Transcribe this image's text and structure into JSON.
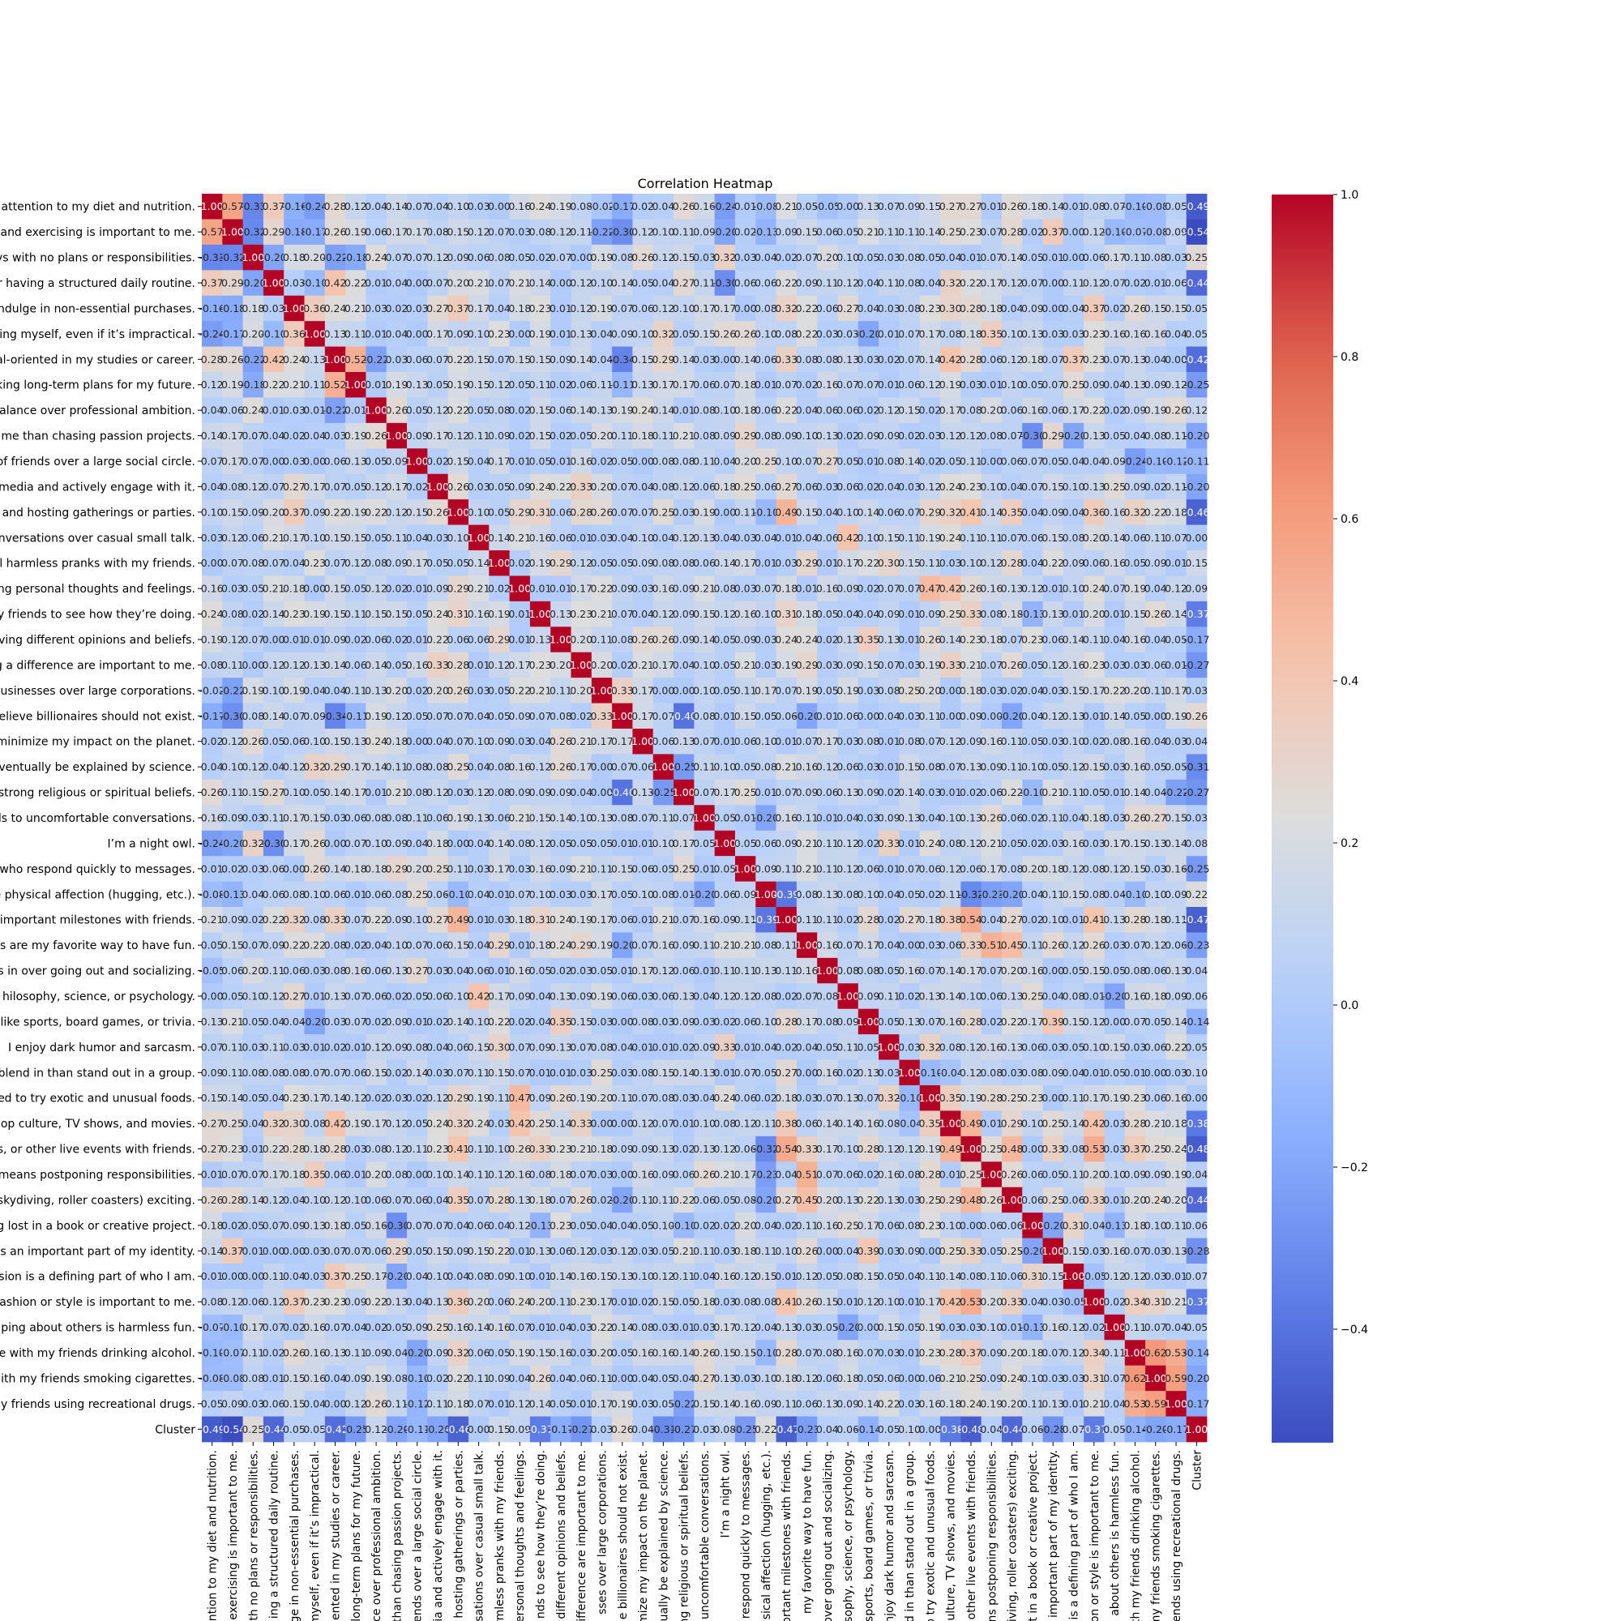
{
  "chart_data": {
    "type": "heatmap",
    "title": "Correlation Heatmap",
    "labels": [
      "attention to my diet and nutrition.",
      "and exercising is important to me.",
      "ys with no plans or responsibilities.",
      "r having a structured daily routine.",
      "ndulge in non-essential purchases.",
      "ing myself, even if it’s impractical.",
      "al-oriented in my studies or career.",
      "king long-term plans for my future.",
      "alance over professional ambition.",
      "me than chasing passion projects.",
      "of friends over a large social circle.",
      "media and actively engage with it.",
      "and hosting gatherings or parties.",
      "nversations over casual small talk.",
      "l harmless pranks with my friends.",
      "ng personal thoughts and feelings.",
      "y friends to see how they’re doing.",
      "ving different opinions and beliefs.",
      "g a difference are important to me.",
      "businesses over large corporations.",
      "elieve billionaires should not exist.",
      "minimize my impact on the planet.",
      "ventually be explained by science.",
      "strong religious or spiritual beliefs.",
      "ds to uncomfortable conversations.",
      "I’m a night owl.",
      "who respond quickly to messages.",
      "e physical affection (hugging, etc.).",
      "important milestones with friends.",
      "s are my favorite way to have fun.",
      "s in over going out and socializing.",
      "hilosophy, science, or psychology.",
      "like sports, board games, or trivia.",
      "I enjoy dark humor and sarcasm.",
      "blend in than stand out in a group.",
      "ed to try exotic and unusual foods.",
      "op culture, TV shows, and movies.",
      "s, or other live events with friends.",
      "means postponing responsibilities.",
      "skydiving, roller coasters) exciting.",
      "g lost in a book or creative project.",
      "s an important part of my identity.",
      "sion is a defining part of who I am.",
      "ashion or style is important to me.",
      "iping about others is harmless fun.",
      "e with my friends drinking alcohol.",
      "ith my friends smoking cigarettes.",
      "y friends using recreational drugs.",
      "Cluster"
    ],
    "xlabels": [
      "ntion to my diet and nutrition.",
      "exercising is important to me.",
      "th no plans or responsibilities.",
      "ing a structured daily routine.",
      "ge in non-essential purchases.",
      "ge myself, even if it’s impractical.",
      "ented in my studies or career.",
      "long-term plans for my future.",
      "ce over professional ambition.",
      "than chasing passion projects.",
      "ends over a large social circle.",
      "ia and actively engage with it.",
      "hosting gatherings or parties.",
      "sations over casual small talk.",
      "rmless pranks with my friends.",
      "ersonal thoughts and feelings.",
      "nds to see how they’re doing.",
      "different opinions and beliefs.",
      "difference are important to me.",
      "sses over large corporations.",
      "e billionaires should not exist.",
      "mize my impact on the planet.",
      "ually be explained by science.",
      "ng religious or spiritual beliefs.",
      "uncomfortable conversations.",
      "I’m a night owl.",
      "respond quickly to messages.",
      "sical affection (hugging, etc.).",
      "ortant milestones with friends.",
      "my favorite way to have fun.",
      "over going out and socializing.",
      "sophy, science, or psychology.",
      "sports, board games, or trivia.",
      "njoy dark humor and sarcasm.",
      "d in than stand out in a group.",
      "o try exotic and unusual foods.",
      "culture, TV shows, and movies.",
      "other live events with friends.",
      "ns postponing responsibilities.",
      "iving, roller coasters) exciting.",
      "t in a book or creative project.",
      "important part of my identity.",
      "is a defining part of who I am.",
      "on or style is important to me.",
      "about others is harmless fun.",
      "th my friends drinking alcohol.",
      "my friends smoking cigarettes.",
      "ends using recreational drugs.",
      "Cluster"
    ],
    "rows": [
      "1.00 0.57 -0.33 0.37 -0.16 -0.24 0.28 0.12 0.04 0.14 0.07 0.04 0.10 0.03 0.00 0.16 0.24 0.19 0.08 -0.02 -0.17 0.02 0.04 0.26 0.16 -0.24 0.01 -0.08 0.21 0.05 -0.05 -0.00 0.13 0.07 0.09 0.15 0.27 0.27 0.01 0.26 0.18 0.14 0.01 0.08 0.07 -0.10 -0.08 0.05 -0.49",
      "0.57 1.00 -0.32 0.29 -0.18 -0.17 0.26 0.19 0.06 0.17 0.17 0.08 0.15 0.12 0.07 0.03 0.08 0.12 0.11 -0.22 -0.30 0.12 0.10 0.11 0.09 -0.20 0.02 -0.13 0.09 0.15 0.06 0.05 0.21 0.11 0.11 0.14 0.25 0.23 0.07 0.28 0.02 0.37 0.00 0.12 -0.10 -0.07 -0.08 0.09 -0.54",
      "-0.33 -0.32 1.00 -0.20 0.18 0.20 -0.22 -0.18 0.24 0.07 0.07 0.12 0.09 0.06 0.08 0.05 0.02 0.07 0.00 0.19 0.08 0.26 0.12 0.15 0.03 0.32 0.03 0.04 0.02 0.07 0.20 0.10 0.05 0.03 0.08 0.05 0.04 0.01 0.07 0.14 0.05 0.01 0.00 0.06 0.17 0.11 0.08 0.03 0.25",
      "0.37 0.29 -0.20 1.00 0.03 -0.10 0.42 0.22 0.01 0.04 0.00 0.07 0.20 0.21 0.07 0.21 0.14 0.00 0.12 0.10 0.14 0.05 0.04 0.27 0.11 -0.30 0.06 0.06 0.22 0.09 0.11 0.12 0.04 0.11 0.08 0.04 0.32 0.22 0.17 0.12 0.07 0.00 0.11 0.12 0.07 0.02 0.01 0.06 -0.44",
      "-0.16 -0.18 0.18 0.03 1.00 0.36 0.24 0.21 0.03 0.02 0.03 0.27 0.37 0.17 0.04 0.18 0.23 0.01 0.12 0.19 0.07 0.06 0.12 0.10 0.17 0.17 0.00 0.08 0.32 0.22 0.06 0.27 0.04 0.03 0.08 0.23 0.30 0.28 0.18 0.04 0.09 0.00 0.04 0.37 0.02 0.26 0.15 0.15 0.05",
      "-0.24 -0.17 0.20 -0.10 0.36 1.00 0.13 0.11 0.01 0.04 0.00 0.17 0.09 0.10 0.23 0.00 0.19 0.01 0.13 0.04 0.09 0.10 0.32 0.05 0.15 0.26 0.26 0.10 0.08 0.22 0.03 0.03 -0.20 0.01 0.07 0.17 0.08 0.18 0.35 0.10 0.13 0.03 0.03 0.23 0.16 0.16 0.16 0.04 0.05",
      "0.28 0.26 -0.22 0.42 0.24 0.13 1.00 0.52 -0.22 0.03 0.06 0.07 0.22 0.15 0.07 0.15 0.15 0.09 0.14 0.04 -0.34 0.15 0.29 0.14 0.03 0.00 0.14 0.06 0.33 0.08 0.08 0.13 0.03 0.02 0.07 0.14 0.42 0.28 0.06 0.12 0.18 0.07 0.37 0.23 0.07 0.13 0.04 0.00 -0.42",
      "0.12 0.19 -0.18 0.22 0.21 0.11 0.52 1.00 0.01 0.19 0.13 0.05 0.19 0.15 0.12 0.05 0.11 0.02 0.06 0.11 -0.11 0.13 0.17 0.17 0.06 0.07 0.18 0.01 0.07 0.02 0.16 0.07 0.07 0.01 0.06 0.12 0.19 0.03 0.01 0.10 0.05 0.07 0.25 0.09 0.04 0.13 0.09 0.12 -0.25",
      "0.04 0.06 0.24 0.01 0.03 0.01 -0.22 0.01 1.00 0.26 0.05 0.12 0.22 0.05 0.08 0.02 0.15 0.06 0.14 0.13 0.19 0.24 0.14 0.01 0.08 0.10 0.18 0.06 0.22 0.04 0.06 0.06 0.02 0.12 0.15 0.02 0.17 0.08 0.20 0.06 0.16 0.06 0.17 0.22 0.02 0.09 0.19 0.26 0.12",
      "0.14 0.17 0.07 0.04 0.02 0.04 0.03 0.19 0.26 1.00 0.09 0.17 0.12 0.11 0.09 0.02 0.15 0.02 0.05 0.20 0.11 0.18 0.11 0.21 0.08 0.09 0.29 0.08 0.09 0.10 0.13 0.02 0.09 0.09 0.02 0.03 0.12 0.12 0.08 0.07 -0.30 0.29 -0.20 0.13 0.05 0.04 0.08 0.11 -0.20",
      "0.07 0.17 0.07 0.00 0.03 0.00 0.06 0.13 0.05 0.09 1.00 0.02 0.15 0.04 0.17 0.01 0.05 0.01 0.16 0.02 0.05 0.00 0.08 0.08 0.11 0.04 0.20 0.25 0.10 0.07 0.27 0.05 0.01 0.08 0.14 0.02 0.05 0.11 0.00 0.06 0.07 0.05 0.04 0.04 0.09 -0.24 -0.10 -0.12 -0.11",
      "0.04 0.08 0.12 0.07 0.27 0.17 0.07 0.05 0.12 0.17 0.02 1.00 0.26 0.03 0.05 0.09 0.24 0.22 0.33 0.20 0.07 0.04 0.08 0.12 0.06 0.18 0.25 0.06 0.27 0.06 0.03 0.06 0.02 0.04 0.03 0.12 0.24 0.23 0.10 0.04 0.07 0.15 0.10 0.13 0.25 0.09 0.02 0.11 -0.20",
      "0.10 0.15 0.09 0.20 0.37 0.09 0.22 0.19 0.22 0.12 0.15 0.26 1.00 0.10 0.05 0.29 0.31 0.06 0.28 0.26 0.07 0.07 0.25 0.03 0.19 0.00 0.11 -0.10 0.49 0.15 0.04 0.10 0.14 0.06 0.07 0.29 0.32 0.41 0.14 0.35 0.04 0.09 0.04 0.36 0.16 0.32 0.22 0.18 -0.46",
      "0.03 0.12 0.06 0.21 0.17 0.10 0.15 0.15 0.05 0.11 0.04 0.03 0.10 1.00 0.14 0.21 0.16 0.06 0.01 0.03 0.04 0.10 0.04 0.12 0.13 0.04 0.03 0.04 0.01 0.04 0.06 0.42 0.10 0.15 0.11 0.19 0.24 0.11 0.11 0.07 0.06 0.15 0.08 0.20 0.14 0.06 0.11 0.07 0.00",
      "0.00 0.07 0.08 0.07 0.04 0.23 0.07 0.12 0.08 0.09 0.17 0.05 0.05 0.14 1.00 0.02 0.19 0.29 0.12 0.05 0.05 0.09 0.08 0.08 0.06 0.14 0.17 0.01 0.03 0.29 0.01 0.17 0.22 0.30 0.15 0.11 0.03 0.10 0.12 0.28 0.04 0.22 0.09 0.06 0.16 0.05 0.09 0.01 0.15",
      "0.16 0.03 0.05 0.21 0.18 0.00 0.15 0.05 0.12 0.02 0.01 0.09 0.29 0.21 0.02 1.00 0.01 0.01 0.17 0.22 0.09 0.03 0.16 0.09 0.21 0.08 0.03 0.07 0.18 0.01 0.16 0.09 0.02 0.07 0.07 0.47 0.42 0.26 0.16 0.13 0.12 0.01 0.10 0.24 0.07 0.19 0.04 0.12 0.09",
      "0.24 0.08 0.02 0.14 0.23 0.19 0.15 0.11 0.15 0.15 0.05 0.24 0.31 0.16 0.19 0.01 1.00 0.13 0.23 0.21 0.07 0.04 0.12 0.09 0.15 0.12 0.16 0.10 0.31 0.18 0.05 0.04 0.04 0.09 0.01 0.09 0.25 0.33 0.08 0.18 -0.13 0.13 0.01 0.20 0.01 0.15 0.26 0.14 -0.37",
      "0.19 0.12 0.07 0.00 0.01 0.01 0.09 0.02 0.06 0.02 0.01 0.22 0.06 0.06 0.29 0.01 0.13 1.00 0.20 0.11 0.08 0.26 0.26 0.09 0.14 0.05 0.09 0.03 0.24 0.24 0.02 0.13 0.35 0.13 0.01 0.26 0.14 0.23 0.18 0.07 0.23 0.06 0.14 0.11 0.04 0.16 0.04 0.05 -0.17",
      "0.08 0.11 0.00 0.12 0.12 0.13 0.14 0.06 0.14 0.05 0.16 0.33 0.28 0.01 0.12 0.17 0.23 0.20 1.00 0.20 0.02 0.21 0.17 0.04 0.10 0.05 0.21 0.03 0.19 0.29 0.03 0.09 0.15 0.07 0.03 0.19 0.33 0.21 0.07 0.26 0.05 0.12 0.16 0.23 0.03 0.03 0.06 0.01 -0.27",
      "-0.02 -0.22 0.19 0.10 0.19 0.04 0.04 0.11 0.13 0.20 0.02 0.20 0.26 0.03 0.05 0.22 0.21 0.11 0.20 1.00 0.33 0.17 0.00 0.00 0.10 0.05 0.11 0.17 0.07 0.19 0.05 0.19 0.03 0.08 0.25 0.20 0.00 0.18 0.03 0.02 0.04 0.03 0.15 0.17 0.22 0.20 0.11 0.17 0.03",
      "-0.17 -0.30 0.08 0.14 0.07 0.09 -0.34 -0.11 0.19 0.12 0.05 0.07 0.07 0.04 0.05 0.09 0.07 0.08 0.02 0.33 1.00 0.17 0.07 -0.40 0.08 0.01 0.15 0.05 0.06 -0.20 0.01 0.06 0.00 0.04 0.03 0.11 0.00 0.09 0.00 -0.20 0.04 0.12 0.13 0.01 0.14 0.05 0.00 0.19 0.26",
      "0.02 0.12 0.26 0.05 0.06 0.10 0.15 0.13 0.24 0.18 0.00 0.04 0.07 0.10 0.09 0.03 0.04 0.26 0.21 0.17 0.17 1.00 0.06 0.13 0.07 0.01 0.06 0.10 0.01 0.07 0.17 0.03 0.08 0.01 0.08 0.07 0.12 0.09 0.16 0.11 0.05 0.03 0.10 0.02 0.08 0.16 0.04 0.03 0.04",
      "0.04 0.10 0.12 0.04 0.12 0.32 0.29 0.17 0.14 0.11 0.08 0.08 0.25 0.04 0.08 0.16 0.12 0.26 0.17 0.00 0.07 0.06 1.00 -0.25 0.11 0.10 0.05 0.08 0.21 0.16 0.12 0.06 0.03 0.01 0.15 0.08 0.07 0.13 0.09 0.11 0.10 0.05 0.12 0.15 0.03 0.16 0.05 0.05 -0.31",
      "0.26 0.11 0.15 0.27 0.10 0.05 0.14 0.17 0.01 0.21 0.08 0.12 0.03 0.12 0.08 0.09 0.09 0.09 0.04 0.00 -0.40 0.13 -0.25 1.00 0.07 0.17 0.25 0.01 0.07 0.09 0.06 0.13 0.09 0.02 0.14 0.03 0.01 0.02 0.06 0.22 -0.10 0.21 0.11 0.05 0.01 0.14 0.04 -0.22 -0.27",
      "0.16 0.09 0.03 0.11 0.17 0.15 0.03 0.06 0.08 0.08 0.11 0.06 0.19 0.13 0.06 0.21 0.15 0.14 0.10 0.13 0.08 0.07 0.11 0.07 1.00 0.05 0.01 -0.20 0.16 0.11 0.01 0.04 0.03 0.09 0.13 0.04 0.10 0.13 0.26 0.06 0.02 0.11 0.04 0.18 0.03 0.26 0.27 0.15 0.03",
      "-0.24 -0.20 0.32 -0.30 0.17 0.26 0.00 0.07 0.10 0.09 0.04 0.18 0.00 0.04 0.14 0.08 0.12 0.05 0.05 0.05 0.01 0.01 0.10 0.17 0.05 1.00 0.05 0.06 0.09 0.21 0.11 0.12 0.02 0.33 0.01 0.24 0.08 0.12 0.21 0.05 0.02 0.03 0.16 0.03 0.17 0.15 0.13 0.14 0.08",
      "0.01 0.02 0.03 0.06 0.00 0.26 0.14 0.18 0.18 0.29 0.20 0.25 0.11 0.03 0.17 0.03 0.16 0.09 0.21 0.11 0.15 0.06 0.05 0.25 0.01 0.05 1.00 0.09 0.11 0.21 0.11 0.12 0.06 0.01 0.07 0.06 0.12 0.06 0.17 0.08 0.20 0.18 0.12 0.08 0.12 0.15 0.03 0.16 -0.25",
      "-0.08 -0.13 0.04 0.06 0.08 0.10 0.06 0.01 0.06 0.08 0.25 0.06 -0.10 0.04 0.01 0.07 0.10 0.03 0.03 0.17 0.05 0.10 0.08 0.01 -0.20 0.06 0.09 1.00 -0.39 0.08 0.13 0.08 0.10 0.04 0.05 0.02 0.11 -0.32 -0.23 -0.20 0.04 0.11 0.15 0.08 0.04 -0.10 0.10 0.09 0.22",
      "0.21 0.09 0.02 0.22 0.32 0.08 0.33 0.07 0.22 0.09 0.10 0.27 0.49 0.01 0.03 0.18 0.31 0.24 0.19 0.17 0.06 0.01 0.21 0.07 0.16 0.09 0.11 -0.39 1.00 0.11 0.11 0.02 0.28 0.02 0.27 0.18 0.38 0.54 0.04 0.27 0.02 0.10 0.01 0.41 0.13 0.28 0.18 0.11 -0.47",
      "0.05 0.15 0.07 0.09 0.22 0.22 0.08 0.02 0.04 0.10 0.07 0.06 0.15 0.04 0.29 0.01 0.18 0.24 0.29 0.19 -0.20 0.07 0.16 0.09 0.11 0.21 0.21 0.08 0.11 1.00 0.16 0.07 0.17 0.04 0.00 0.03 0.06 0.33 0.51 0.45 0.11 0.26 0.12 0.26 0.03 0.07 0.12 0.06 -0.23",
      "-0.05 0.06 0.20 0.11 0.06 0.03 0.08 0.16 0.06 0.13 0.27 0.03 0.04 0.06 0.01 0.16 0.05 0.02 0.03 0.05 0.01 0.17 0.12 0.06 0.01 0.11 0.11 0.13 0.11 0.16 1.00 0.08 0.08 0.05 0.16 0.07 0.14 0.17 0.07 0.20 0.16 0.00 0.05 0.15 0.05 0.08 0.06 0.13 0.04",
      "-0.00 0.05 0.10 0.12 0.27 0.01 0.13 0.07 0.06 0.02 0.05 0.06 0.10 0.42 0.17 0.09 0.04 0.13 0.09 0.19 0.06 0.03 0.06 0.13 0.04 0.12 0.12 0.08 0.02 0.07 0.08 1.00 0.09 0.11 0.02 0.13 0.14 0.10 0.06 0.13 0.25 0.04 0.08 0.01 -0.20 0.16 0.18 0.09 0.06",
      "0.13 0.21 0.05 0.04 0.04 -0.20 0.03 0.07 0.02 0.09 0.01 0.02 0.14 0.10 0.22 0.02 0.04 0.35 0.15 0.03 0.00 0.08 0.03 0.09 0.03 0.02 0.06 0.10 0.28 0.17 0.08 0.09 1.00 0.05 0.13 0.07 0.16 0.28 0.02 0.22 0.17 0.39 0.15 0.12 0.00 0.07 0.05 0.14 -0.14",
      "0.07 0.11 0.03 0.11 0.03 0.01 0.02 0.01 0.12 0.09 0.08 0.04 0.06 0.15 0.30 0.07 0.09 0.13 0.07 0.08 0.04 0.01 0.01 0.02 0.09 0.33 0.01 0.04 0.02 0.04 0.05 0.11 0.05 1.00 0.03 0.32 0.08 0.12 0.16 0.13 0.06 0.03 0.05 0.10 0.15 0.03 0.06 0.22 0.05",
      "0.09 0.11 0.08 0.08 0.08 0.07 0.07 0.06 0.15 0.02 0.14 0.03 0.07 0.11 0.15 0.07 0.01 0.01 0.03 0.25 0.03 0.08 0.15 0.14 0.13 0.01 0.07 0.05 0.27 0.00 0.16 0.02 0.13 0.03 1.00 -0.10 -0.04 0.12 0.08 0.03 0.08 0.09 0.04 0.01 0.05 0.01 0.00 0.03 0.10",
      "0.15 0.14 0.05 0.04 0.23 0.17 0.14 0.12 0.02 0.03 0.02 0.12 0.29 0.19 0.11 0.47 0.09 0.26 0.19 0.20 0.11 0.07 0.08 0.03 0.04 0.24 0.06 0.02 0.18 0.03 0.07 0.13 0.07 0.32 -0.10 1.00 0.35 0.19 0.28 0.25 0.23 0.00 0.11 0.17 0.19 0.23 0.06 0.16 0.00",
      "0.27 0.25 0.04 0.32 0.30 0.08 0.42 0.19 0.17 0.12 0.05 0.24 0.32 0.24 0.03 0.42 0.25 0.14 0.33 0.00 0.00 0.12 0.07 0.01 0.10 0.08 0.12 0.11 0.38 0.06 0.14 0.14 0.16 0.08 -0.04 0.35 1.00 0.49 0.01 0.29 0.10 0.25 0.14 0.42 0.03 0.28 0.21 0.18 -0.38",
      "0.27 0.23 0.01 0.22 0.28 0.18 0.28 0.03 0.08 0.12 0.11 0.23 0.41 0.11 0.10 0.26 0.33 0.23 0.21 0.18 0.09 0.09 0.13 0.02 0.13 0.12 0.06 -0.32 0.54 0.33 0.17 0.10 0.28 0.12 0.12 0.19 0.49 1.00 0.25 0.48 0.00 0.33 0.08 0.53 0.03 0.37 0.25 0.24 -0.48",
      "0.01 0.07 0.07 0.17 0.18 0.35 0.06 0.01 0.20 0.08 0.00 0.10 0.14 0.11 0.12 0.16 0.08 0.18 0.07 0.03 0.00 0.16 0.09 0.06 0.26 0.21 0.17 -0.23 0.04 0.51 0.07 0.06 0.02 0.16 0.08 0.28 0.01 0.25 1.00 0.26 0.06 0.05 0.11 0.20 0.10 0.09 0.09 0.19 0.04",
      "0.26 0.28 0.14 0.12 0.04 0.10 0.12 0.10 0.06 0.07 0.06 0.04 0.35 0.07 0.28 0.13 0.18 0.07 0.26 0.02 -0.20 0.11 0.11 0.22 0.06 0.05 0.08 -0.20 0.27 0.45 0.20 0.13 0.22 0.13 0.03 0.25 0.29 0.48 0.26 1.00 0.06 0.25 0.06 0.33 0.01 0.20 0.24 0.20 -0.44",
      "0.18 0.02 0.05 0.07 0.09 0.13 0.18 0.05 0.16 -0.30 0.07 0.07 0.04 0.06 0.04 0.12 -0.13 0.23 0.05 0.04 0.04 0.05 0.10 -0.10 0.02 0.02 0.20 0.04 0.02 0.11 0.16 0.25 0.17 0.06 0.08 0.23 0.10 0.00 0.06 0.06 1.00 -0.20 0.31 0.04 -0.13 0.18 0.10 0.11 0.06",
      "0.14 0.37 0.01 0.00 0.00 0.03 0.07 0.07 0.06 0.29 0.05 0.15 0.09 0.15 0.22 0.01 0.13 0.06 0.12 0.03 0.12 0.03 0.05 0.21 0.11 0.03 0.18 0.11 0.10 0.26 0.00 0.04 0.39 0.03 0.09 0.00 0.25 0.33 0.05 0.25 -0.20 1.00 0.15 0.03 0.16 0.07 0.03 0.13 -0.28",
      "0.01 0.00 0.00 0.11 0.04 0.03 0.37 0.25 0.17 -0.20 0.04 0.10 0.04 0.08 0.09 0.10 0.01 0.14 0.16 0.15 0.13 0.10 0.12 0.11 0.04 0.16 0.12 0.15 0.01 0.12 0.05 0.08 0.15 0.05 0.04 0.11 0.14 0.08 0.11 0.06 0.31 0.15 1.00 -0.05 0.12 0.12 0.03 0.01 0.07",
      "0.08 0.12 0.06 0.12 0.37 0.23 0.23 0.09 0.22 0.13 0.04 0.13 0.36 0.20 0.06 0.24 0.20 0.11 0.23 0.17 0.01 0.02 0.15 0.05 0.18 0.03 0.08 0.08 0.41 0.26 0.15 0.01 0.12 0.10 0.01 0.17 0.42 0.53 0.20 0.33 0.04 0.03 -0.05 1.00 0.02 0.34 0.31 0.21 -0.37",
      "-0.07 -0.10 0.17 0.07 0.02 0.16 0.07 0.04 0.02 0.05 0.09 0.25 0.16 0.14 0.16 0.07 0.01 0.04 0.03 0.22 0.14 0.08 0.03 0.01 0.03 0.17 0.12 0.04 0.13 0.03 0.05 -0.20 0.00 0.15 0.05 0.19 0.03 0.03 0.10 0.01 -0.13 0.16 0.12 0.02 1.00 0.11 0.07 0.04 0.05",
      "-0.10 -0.07 0.11 0.02 0.26 0.16 0.13 0.11 0.09 0.04 -0.20 0.09 0.32 0.06 0.05 0.19 0.15 0.16 0.03 0.20 0.05 0.16 0.16 0.14 0.26 0.15 0.15 -0.10 0.28 0.07 0.08 0.16 0.07 0.03 0.01 0.23 0.28 0.37 0.09 0.20 0.18 0.07 0.12 0.34 0.11 1.00 0.62 0.53 -0.14",
      "-0.08 -0.08 0.08 0.01 0.15 0.16 0.04 0.09 0.19 0.08 -0.10 0.02 0.22 0.11 0.09 0.04 0.26 0.04 0.06 0.11 0.00 0.04 0.05 0.04 0.27 0.13 0.03 0.10 0.18 0.12 0.06 0.18 0.05 0.06 0.00 0.06 0.21 0.25 0.09 0.24 0.10 0.03 0.03 0.31 0.07 0.62 1.00 0.59 -0.20",
      "0.05 0.09 0.03 0.06 0.15 0.04 0.00 0.12 0.26 0.11 -0.12 0.11 0.18 0.07 0.01 0.12 0.14 0.05 0.01 0.17 0.19 0.03 0.05 -0.22 0.15 0.14 0.16 0.09 0.11 0.06 0.13 0.09 0.14 0.22 0.03 0.16 0.18 0.24 0.19 0.20 0.11 0.13 0.01 0.21 0.04 0.53 0.59 1.00 -0.17",
      "-0.49 -0.54 0.25 -0.44 0.05 0.05 -0.42 -0.25 0.12 -0.20 -0.11 -0.20 -0.46 0.00 0.15 0.09 -0.37 -0.17 -0.27 0.03 0.26 0.04 -0.31 -0.27 0.03 0.08 -0.25 0.22 -0.47 -0.23 0.04 0.06 -0.14 0.05 0.10 0.00 -0.38 -0.48 0.04 -0.44 0.06 -0.28 0.07 -0.37 0.05 -0.14 -0.20 -0.17 1.00"
    ],
    "vmin": -0.54,
    "vmax": 1.0,
    "colormap": "coolwarm",
    "colorbar_ticks": [
      "1.0",
      "0.8",
      "0.6",
      "0.4",
      "0.2",
      "0.0",
      "−0.2",
      "−0.4"
    ],
    "annotated": true,
    "grid": false
  }
}
